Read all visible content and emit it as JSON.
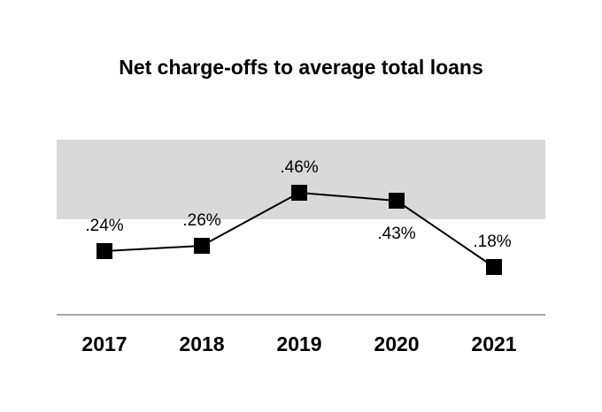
{
  "chart_data": {
    "type": "line",
    "title": "Net charge-offs to average total loans",
    "xlabel": "",
    "ylabel": "",
    "categories": [
      "2017",
      "2018",
      "2019",
      "2020",
      "2021"
    ],
    "series": [
      {
        "values": [
          0.24,
          0.26,
          0.46,
          0.43,
          0.18
        ],
        "labels": [
          ".24%",
          ".26%",
          ".46%",
          ".43%",
          ".18%"
        ]
      }
    ],
    "highlight_band": [
      0.36,
      0.66
    ],
    "ylim": [
      0.0,
      0.66
    ],
    "grid": false,
    "legend": "none",
    "colors": {
      "line": "#000000",
      "marker": "#000000",
      "band": "#d9d9d9",
      "axis": "#a6a6a6"
    }
  }
}
